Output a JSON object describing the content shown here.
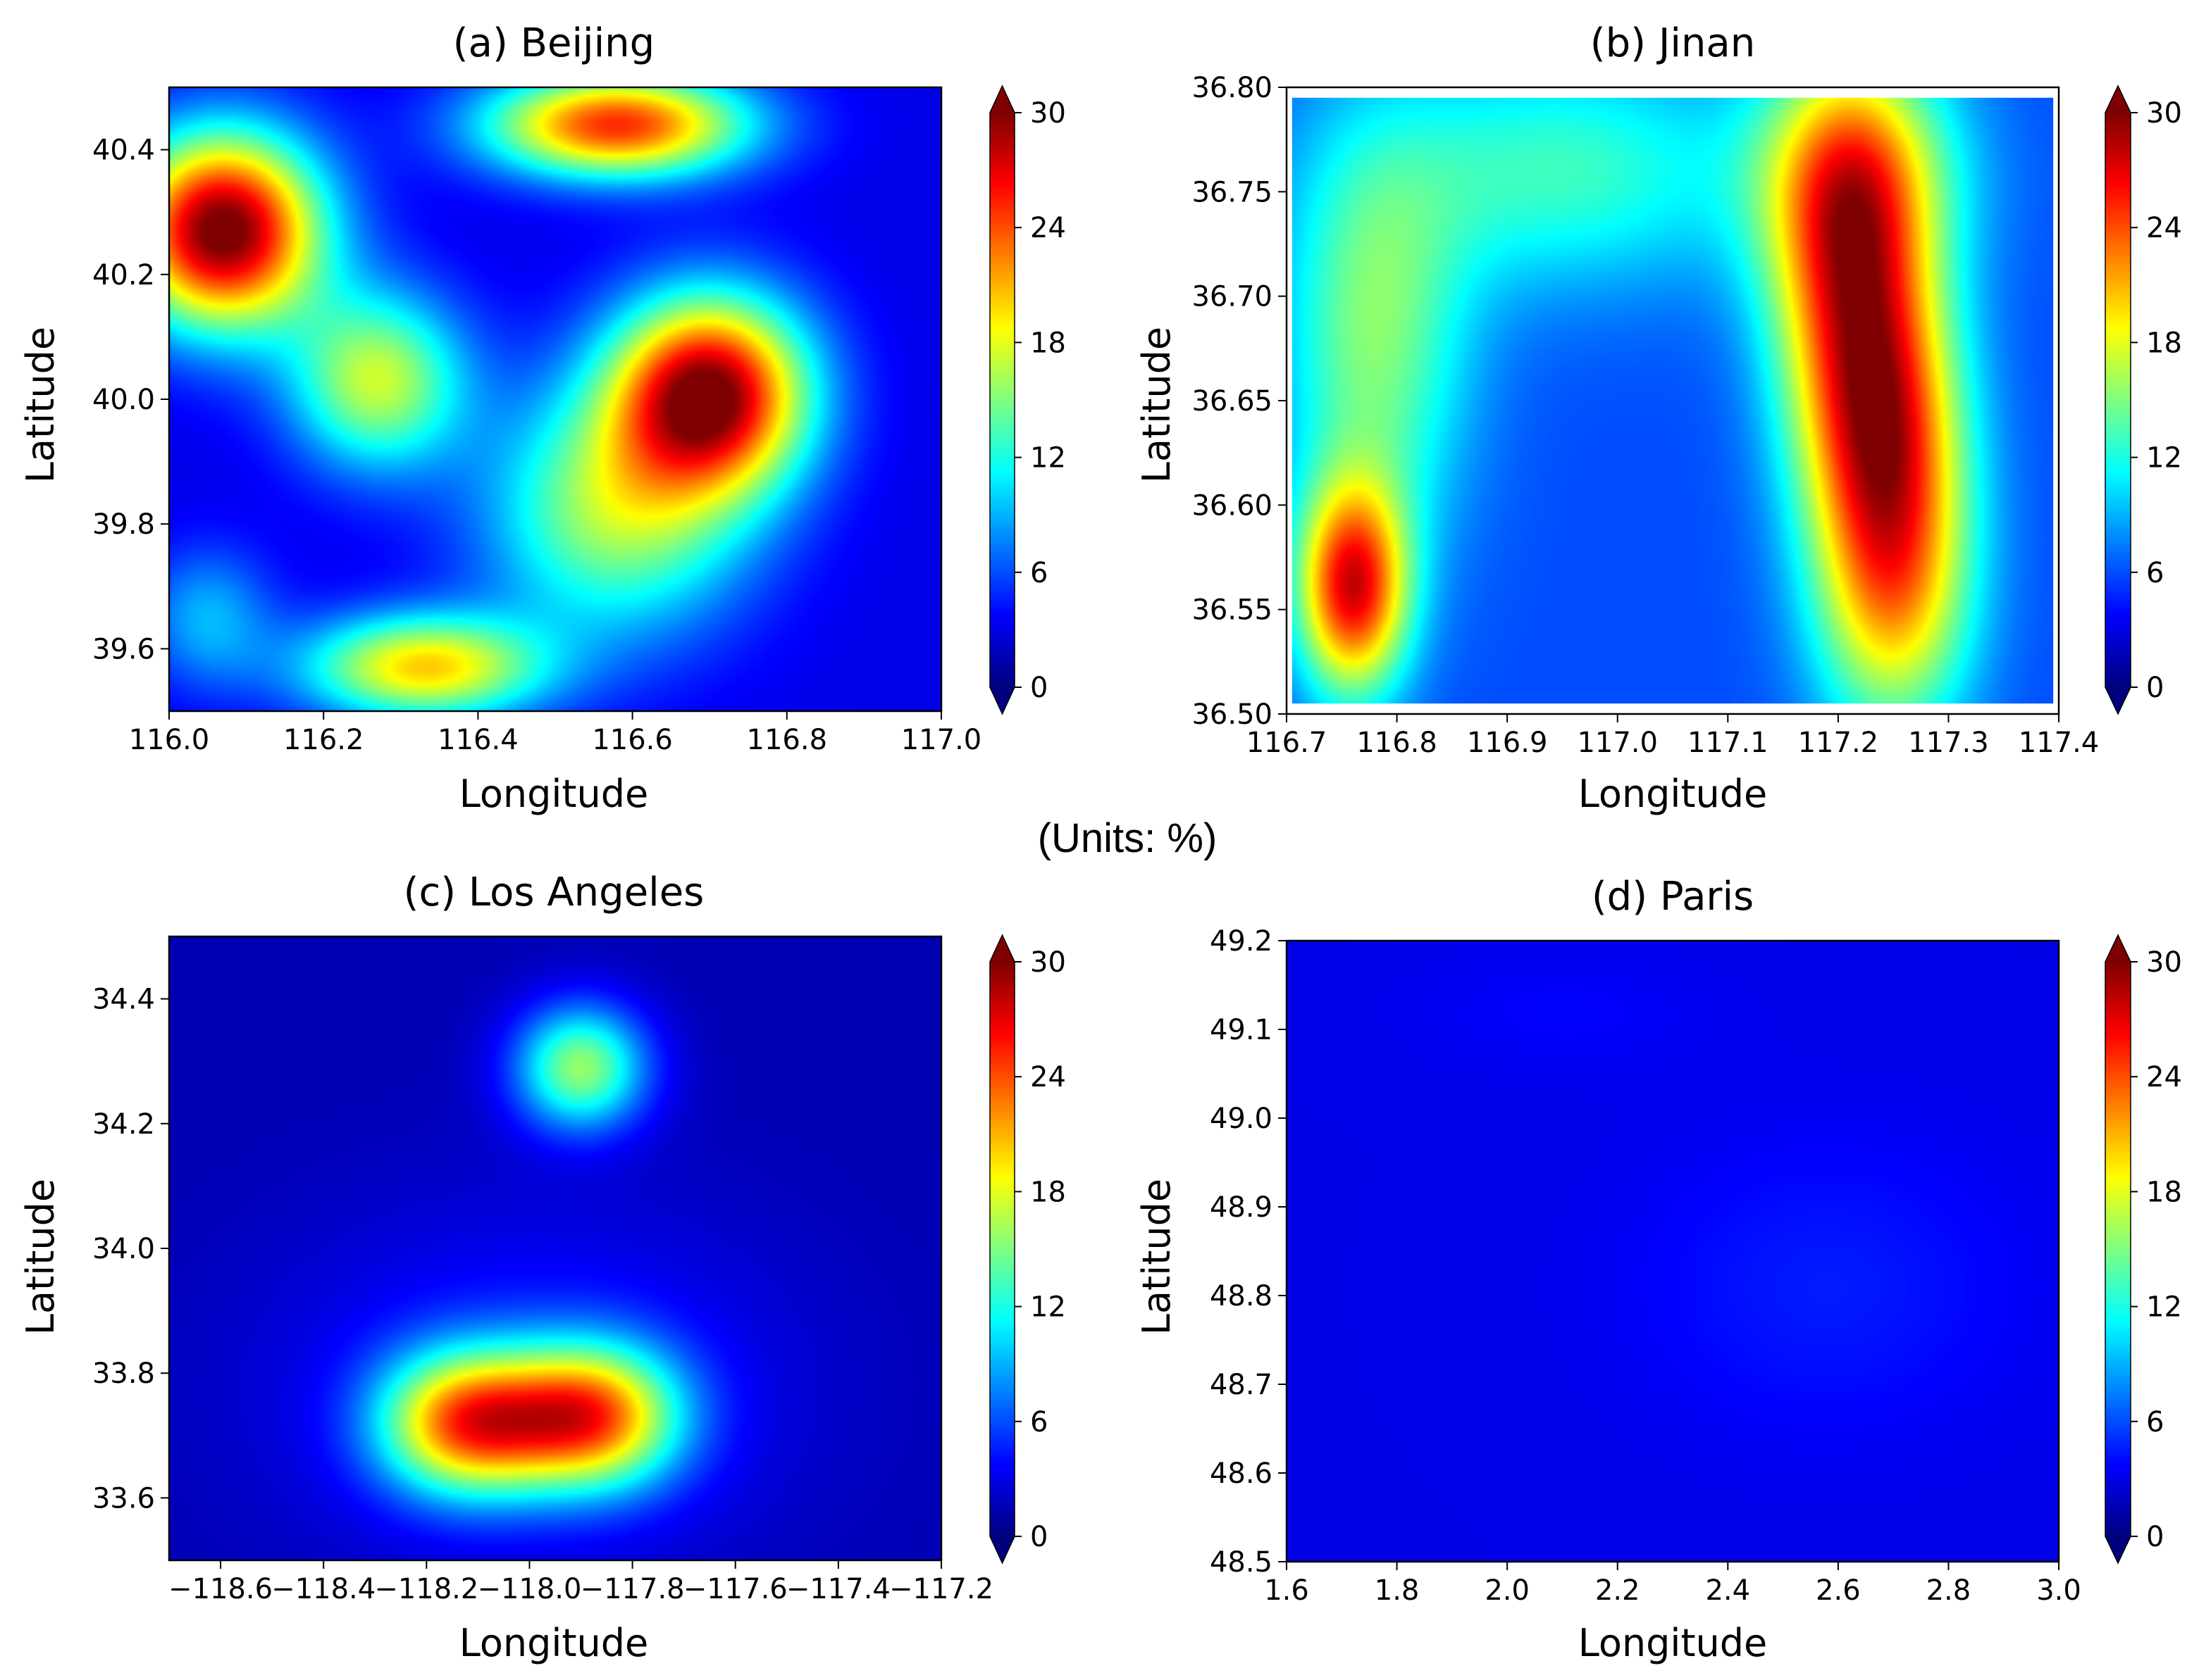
{
  "figure": {
    "units_label": "(Units: %)"
  },
  "colorbar": {
    "min": 0,
    "max": 30,
    "ticks": [
      0,
      6,
      12,
      18,
      24,
      30
    ],
    "tick_labels": [
      "0",
      "6",
      "12",
      "18",
      "24",
      "30"
    ],
    "extend": "both",
    "colormap": "jet",
    "colors": [
      "#00007f",
      "#0000ff",
      "#007fff",
      "#00ffff",
      "#7fff7f",
      "#ffff00",
      "#ff7f00",
      "#ff0000",
      "#7f0000"
    ]
  },
  "chart_data": [
    {
      "type": "heatmap",
      "title": "(a) Beijing",
      "xlabel": "Longitude",
      "ylabel": "Latitude",
      "xlim": [
        116.0,
        117.0
      ],
      "ylim": [
        39.5,
        40.5
      ],
      "xticks": [
        116.0,
        116.2,
        116.4,
        116.6,
        116.8,
        117.0
      ],
      "xtick_labels": [
        "116.0",
        "116.2",
        "116.4",
        "116.6",
        "116.8",
        "117.0"
      ],
      "yticks": [
        39.6,
        39.8,
        40.0,
        40.2,
        40.4
      ],
      "ytick_labels": [
        "39.6",
        "39.8",
        "40.0",
        "40.2",
        "40.4"
      ],
      "background_value": 3,
      "hotspots": [
        {
          "lon": 116.07,
          "lat": 40.27,
          "value": 28,
          "spread_lon": 0.09,
          "spread_lat": 0.11
        },
        {
          "lon": 116.27,
          "lat": 40.03,
          "value": 14,
          "spread_lon": 0.08,
          "spread_lat": 0.1
        },
        {
          "lon": 116.58,
          "lat": 40.44,
          "value": 22,
          "spread_lon": 0.12,
          "spread_lat": 0.06
        },
        {
          "lon": 116.7,
          "lat": 40.01,
          "value": 26,
          "spread_lon": 0.09,
          "spread_lat": 0.11
        },
        {
          "lon": 116.58,
          "lat": 39.82,
          "value": 13,
          "spread_lon": 0.12,
          "spread_lat": 0.14
        },
        {
          "lon": 116.33,
          "lat": 39.57,
          "value": 17,
          "spread_lon": 0.11,
          "spread_lat": 0.06
        },
        {
          "lon": 116.05,
          "lat": 39.65,
          "value": 6,
          "spread_lon": 0.06,
          "spread_lat": 0.08
        }
      ]
    },
    {
      "type": "heatmap",
      "title": "(b) Jinan",
      "xlabel": "Longitude",
      "ylabel": "Latitude",
      "xlim": [
        116.7,
        117.4
      ],
      "ylim": [
        36.5,
        36.8
      ],
      "xticks": [
        116.7,
        116.8,
        116.9,
        117.0,
        117.1,
        117.2,
        117.3,
        117.4
      ],
      "xtick_labels": [
        "116.7",
        "116.8",
        "116.9",
        "117.0",
        "117.1",
        "117.2",
        "117.3",
        "117.4"
      ],
      "yticks": [
        36.5,
        36.55,
        36.6,
        36.65,
        36.7,
        36.75,
        36.8
      ],
      "ytick_labels": [
        "36.50",
        "36.55",
        "36.60",
        "36.65",
        "36.70",
        "36.75",
        "36.80"
      ],
      "data_extent": [
        116.705,
        117.395,
        36.505,
        36.795
      ],
      "background_value": 6,
      "hotspots": [
        {
          "lon": 116.76,
          "lat": 36.56,
          "value": 20,
          "spread_lon": 0.035,
          "spread_lat": 0.035
        },
        {
          "lon": 116.78,
          "lat": 36.68,
          "value": 9,
          "spread_lon": 0.06,
          "spread_lat": 0.07
        },
        {
          "lon": 116.95,
          "lat": 36.76,
          "value": 7,
          "spread_lon": 0.12,
          "spread_lat": 0.04
        },
        {
          "lon": 117.21,
          "lat": 36.72,
          "value": 16,
          "spread_lon": 0.05,
          "spread_lat": 0.06
        },
        {
          "lon": 117.24,
          "lat": 36.64,
          "value": 16,
          "spread_lon": 0.05,
          "spread_lat": 0.05
        },
        {
          "lon": 117.25,
          "lat": 36.56,
          "value": 14,
          "spread_lon": 0.05,
          "spread_lat": 0.05
        },
        {
          "lon": 117.22,
          "lat": 36.76,
          "value": 8,
          "spread_lon": 0.07,
          "spread_lat": 0.04
        }
      ]
    },
    {
      "type": "heatmap",
      "title": "(c) Los Angeles",
      "xlabel": "Longitude",
      "ylabel": "Latitude",
      "xlim": [
        -118.7,
        -117.2
      ],
      "ylim": [
        33.5,
        34.5
      ],
      "xticks": [
        -118.6,
        -118.4,
        -118.2,
        -118.0,
        -117.8,
        -117.6,
        -117.4,
        -117.2
      ],
      "xtick_labels": [
        "−118.6",
        "−118.4",
        "−118.2",
        "−118.0",
        "−117.8",
        "−117.6",
        "−117.4",
        "−117.2"
      ],
      "yticks": [
        33.6,
        33.8,
        34.0,
        34.2,
        34.4
      ],
      "ytick_labels": [
        "33.6",
        "33.8",
        "34.0",
        "34.2",
        "34.4"
      ],
      "background_value": 1.5,
      "hotspots": [
        {
          "lon": -117.9,
          "lat": 34.29,
          "value": 14,
          "spread_lon": 0.09,
          "spread_lat": 0.07
        },
        {
          "lon": -118.12,
          "lat": 33.72,
          "value": 20,
          "spread_lon": 0.12,
          "spread_lat": 0.08
        },
        {
          "lon": -117.88,
          "lat": 33.73,
          "value": 20,
          "spread_lon": 0.12,
          "spread_lat": 0.08
        },
        {
          "lon": -118.0,
          "lat": 33.78,
          "value": 3,
          "spread_lon": 0.35,
          "spread_lat": 0.2
        }
      ]
    },
    {
      "type": "heatmap",
      "title": "(d) Paris",
      "xlabel": "Longitude",
      "ylabel": "Latitude",
      "xlim": [
        1.6,
        3.0
      ],
      "ylim": [
        48.5,
        49.2
      ],
      "xticks": [
        1.6,
        1.8,
        2.0,
        2.2,
        2.4,
        2.6,
        2.8,
        3.0
      ],
      "xtick_labels": [
        "1.6",
        "1.8",
        "2.0",
        "2.2",
        "2.4",
        "2.6",
        "2.8",
        "3.0"
      ],
      "yticks": [
        48.5,
        48.6,
        48.7,
        48.8,
        48.9,
        49.0,
        49.1,
        49.2
      ],
      "ytick_labels": [
        "48.5",
        "48.6",
        "48.7",
        "48.8",
        "48.9",
        "49.0",
        "49.1",
        "49.2"
      ],
      "background_value": 3,
      "hotspots": [
        {
          "lon": 2.58,
          "lat": 48.81,
          "value": 1.5,
          "spread_lon": 0.25,
          "spread_lat": 0.12
        },
        {
          "lon": 2.1,
          "lat": 49.12,
          "value": 0.7,
          "spread_lon": 0.2,
          "spread_lat": 0.05
        }
      ]
    }
  ]
}
